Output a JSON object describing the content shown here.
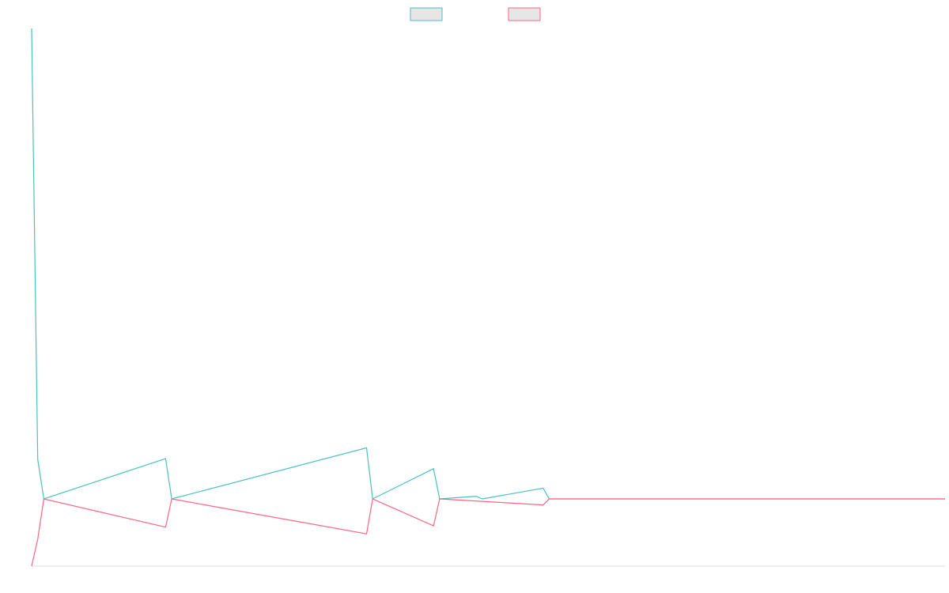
{
  "chart_data": {
    "type": "line",
    "title": "",
    "xlabel": "",
    "ylabel": "",
    "legend_position": "top-center",
    "grid": false,
    "x_count": 151,
    "ylim": [
      -10,
      70
    ],
    "series": [
      {
        "color": "#4bc0c0",
        "points": [
          [
            0,
            70
          ],
          [
            1,
            5.9
          ],
          [
            2,
            0
          ],
          [
            22,
            6.0
          ],
          [
            23,
            0
          ],
          [
            55,
            7.6
          ],
          [
            56,
            0
          ],
          [
            66,
            4.5
          ],
          [
            67,
            0
          ],
          [
            73,
            0.4
          ],
          [
            74,
            0
          ],
          [
            84,
            1.6
          ],
          [
            85,
            0
          ],
          [
            150,
            0
          ]
        ]
      },
      {
        "color": "#ff6384",
        "points": [
          [
            0,
            -10
          ],
          [
            1,
            -6.0
          ],
          [
            2,
            0
          ],
          [
            22,
            -4.2
          ],
          [
            23,
            0
          ],
          [
            55,
            -5.2
          ],
          [
            56,
            0
          ],
          [
            66,
            -4.0
          ],
          [
            67,
            0
          ],
          [
            84,
            -0.9
          ],
          [
            85,
            0
          ],
          [
            150,
            0
          ]
        ]
      }
    ]
  }
}
